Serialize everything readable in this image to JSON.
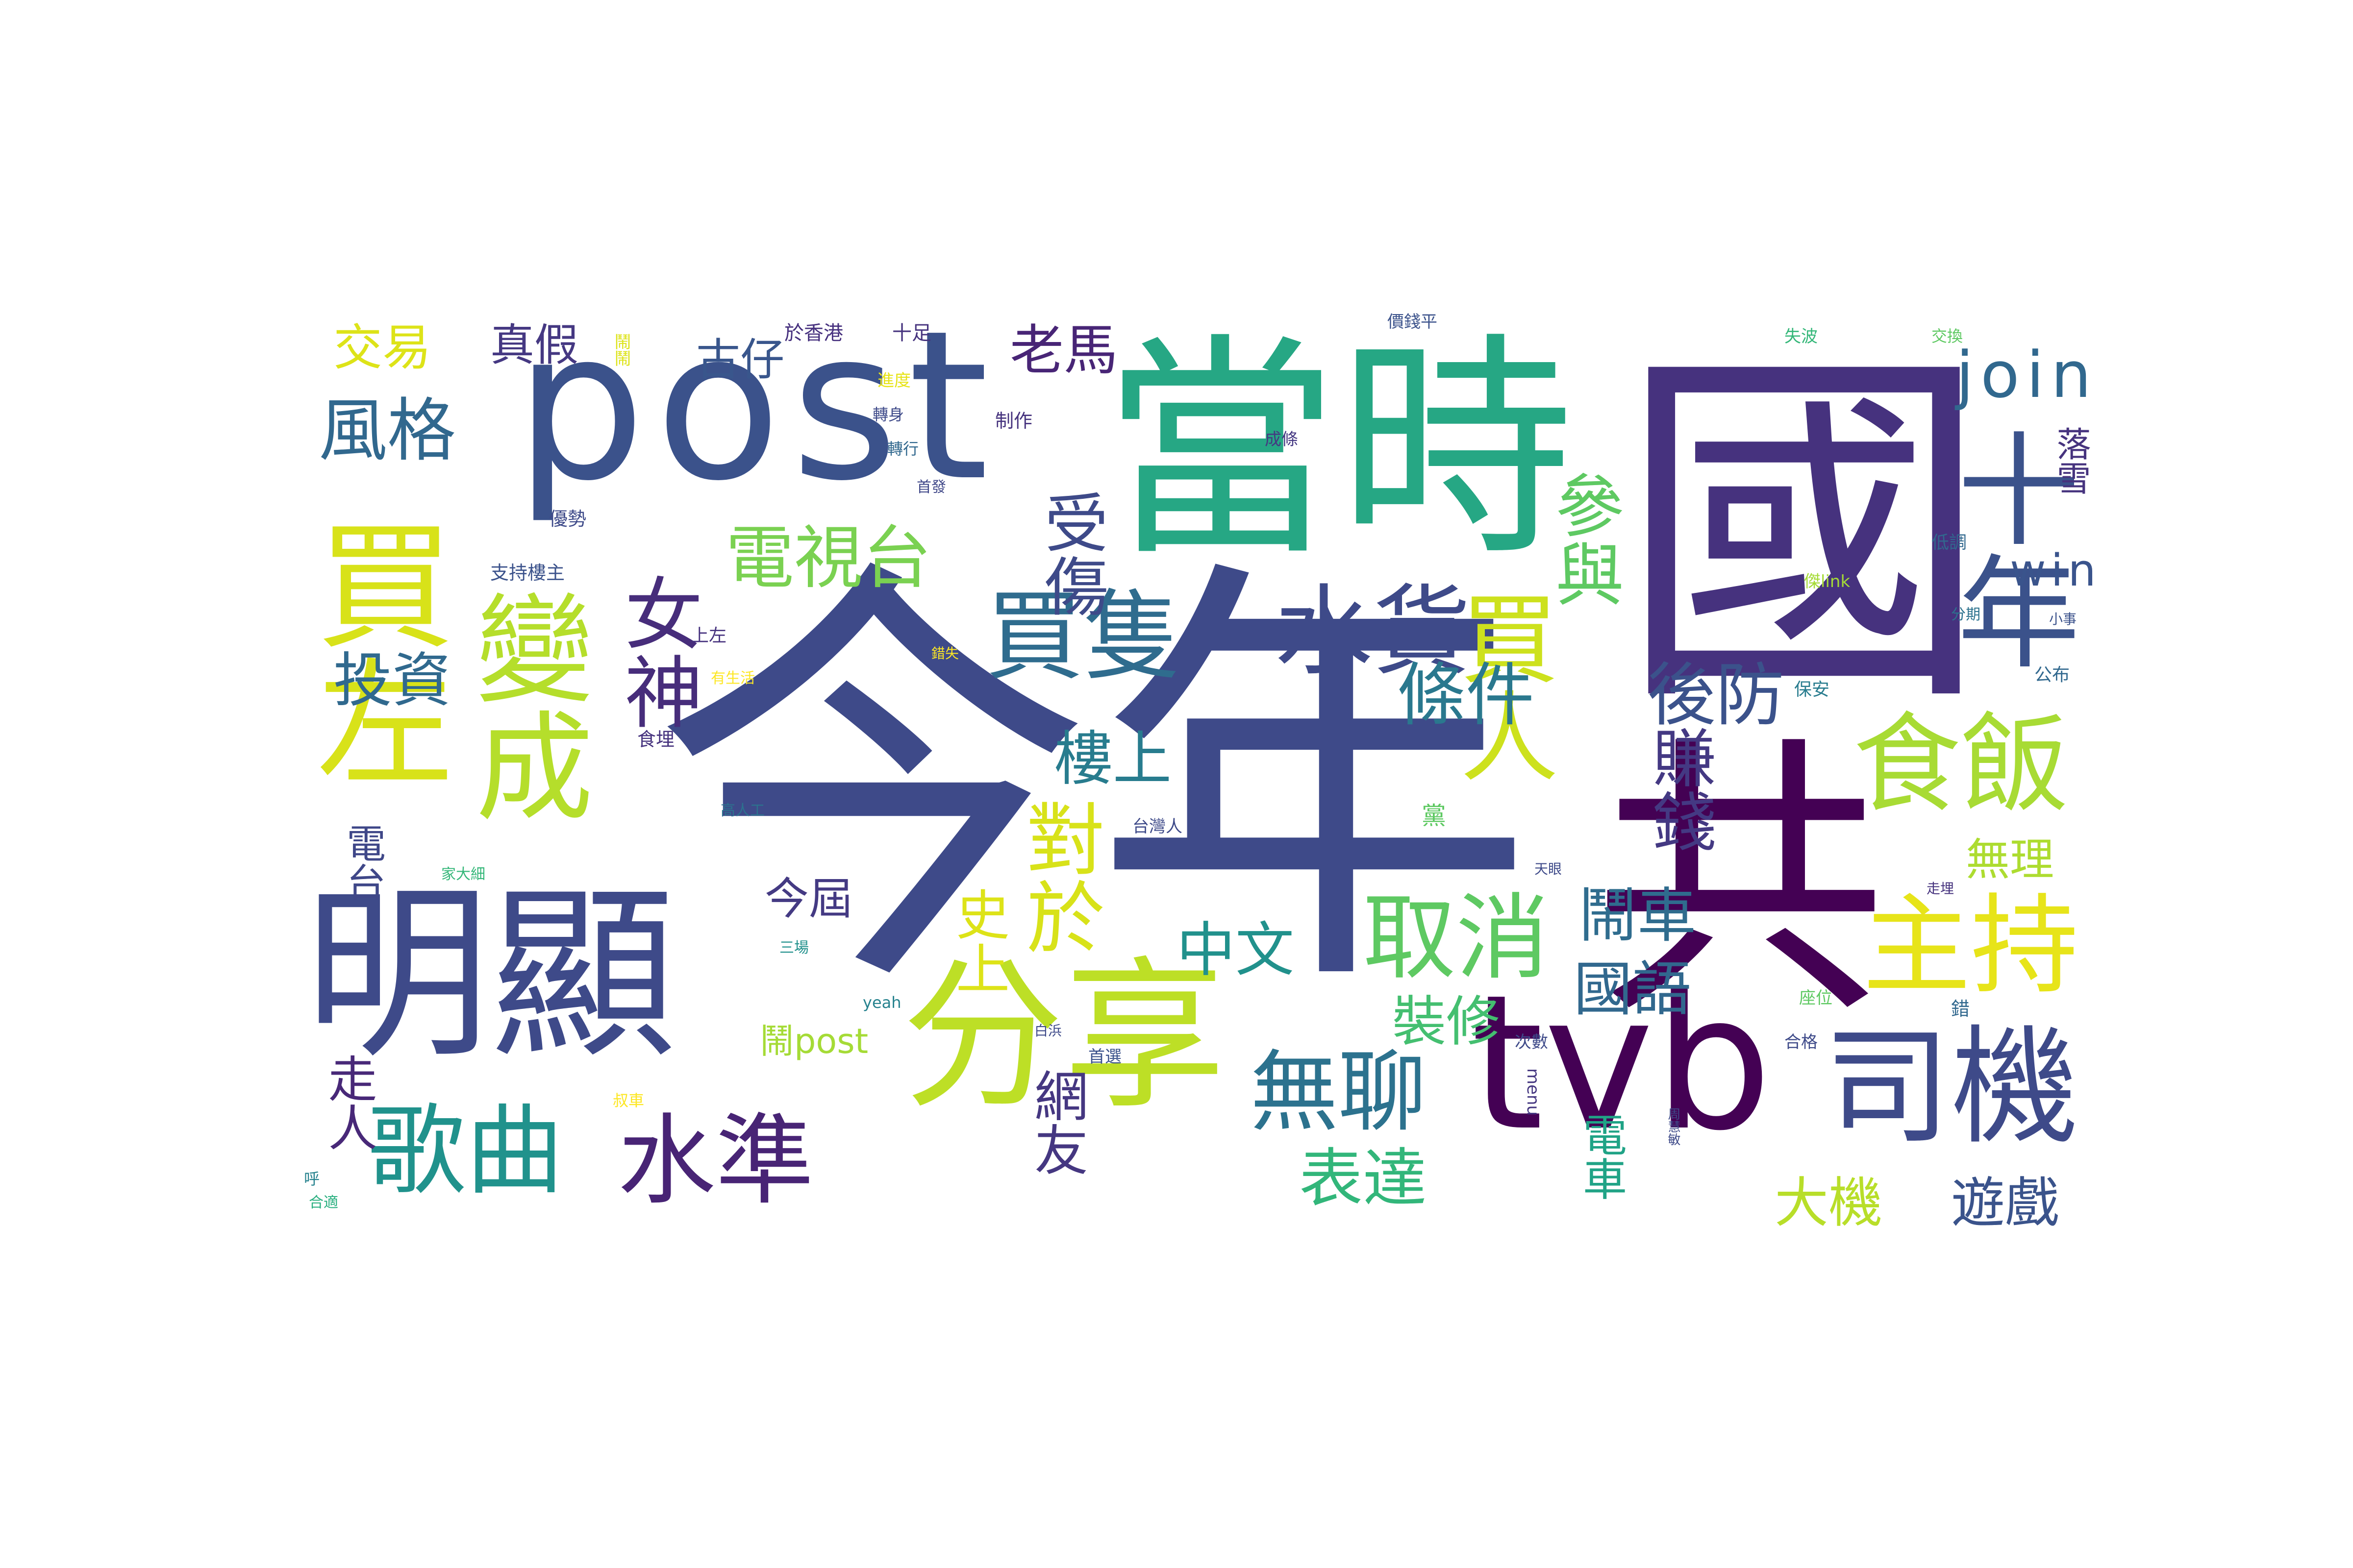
{
  "words": [
    {
      "text": "今年",
      "color": "#3e4a89"
    },
    {
      "text": "國",
      "color": "#46327e"
    },
    {
      "text": "當時",
      "color": "#26a784"
    },
    {
      "text": "post",
      "color": "#3b528b"
    },
    {
      "text": "明顯",
      "color": "#3e4a89"
    },
    {
      "text": "tvb",
      "color": "#440154"
    },
    {
      "text": "分享",
      "color": "#bddf26"
    },
    {
      "text": "十年",
      "color": "#3b528b"
    },
    {
      "text": "共",
      "color": "#440154"
    },
    {
      "text": "司機",
      "color": "#3e4a89"
    },
    {
      "text": "買左",
      "color": "#d8e219"
    },
    {
      "text": "變成",
      "color": "#b5de2b"
    },
    {
      "text": "女神",
      "color": "#472d7b"
    },
    {
      "text": "買隻",
      "color": "#2f6c8e"
    },
    {
      "text": "水貨",
      "color": "#3e4a89"
    },
    {
      "text": "買人",
      "color": "#cde11d"
    },
    {
      "text": "食飯",
      "color": "#a8db34"
    },
    {
      "text": "主持",
      "color": "#e7e419"
    },
    {
      "text": "取消",
      "color": "#5ec962"
    },
    {
      "text": "無聊",
      "color": "#2c728e"
    },
    {
      "text": "歌曲",
      "color": "#20928c"
    },
    {
      "text": "水準",
      "color": "#482475"
    },
    {
      "text": "電視台",
      "color": "#7ad151"
    },
    {
      "text": "參與",
      "color": "#5ec962"
    },
    {
      "text": "受傷",
      "color": "#3e4a89"
    },
    {
      "text": "對於",
      "color": "#d8e219"
    },
    {
      "text": "賺錢",
      "color": "#443983"
    },
    {
      "text": "風格",
      "color": "#31688e"
    },
    {
      "text": "join",
      "color": "#31688e"
    },
    {
      "text": "條件",
      "color": "#2a788e"
    },
    {
      "text": "後防",
      "color": "#3b528b"
    },
    {
      "text": "樓上",
      "color": "#287c8e"
    },
    {
      "text": "投資",
      "color": "#30698e"
    },
    {
      "text": "中文",
      "color": "#21918c"
    },
    {
      "text": "鬧車",
      "color": "#2f6c8e"
    },
    {
      "text": "國語",
      "color": "#31688e"
    },
    {
      "text": "裝修",
      "color": "#44bf70"
    },
    {
      "text": "表達",
      "color": "#32b67a"
    },
    {
      "text": "網友",
      "color": "#453781"
    },
    {
      "text": "大機",
      "color": "#b8de29"
    },
    {
      "text": "遊戲",
      "color": "#3a538b"
    },
    {
      "text": "電車",
      "color": "#20a386"
    },
    {
      "text": "走人",
      "color": "#482878"
    },
    {
      "text": "史上",
      "color": "#dde318"
    },
    {
      "text": "今屆",
      "color": "#443a83"
    },
    {
      "text": "交易",
      "color": "#dde318"
    },
    {
      "text": "真假",
      "color": "#453882"
    },
    {
      "text": "古仔",
      "color": "#39568c"
    },
    {
      "text": "老馬",
      "color": "#482576"
    },
    {
      "text": "電台",
      "color": "#3f4788"
    },
    {
      "text": "無理",
      "color": "#addc30"
    },
    {
      "text": "win",
      "color": "#3a548c"
    },
    {
      "text": "落雪",
      "color": "#46337e"
    },
    {
      "text": "鬧post",
      "color": "#a5db36"
    },
    {
      "text": "於香港",
      "color": "#46307e"
    },
    {
      "text": "十足",
      "color": "#46337e"
    },
    {
      "text": "進度",
      "color": "#e7e419"
    },
    {
      "text": "轉身",
      "color": "#3e4a89"
    },
    {
      "text": "轉行",
      "color": "#31688e"
    },
    {
      "text": "制作",
      "color": "#46337e"
    },
    {
      "text": "成條",
      "color": "#453882"
    },
    {
      "text": "價錢平",
      "color": "#3b528b"
    },
    {
      "text": "失波",
      "color": "#35b779"
    },
    {
      "text": "交換",
      "color": "#5ec962"
    },
    {
      "text": "鬧鬧",
      "color": "#dde318"
    },
    {
      "text": "首發",
      "color": "#3f4788"
    },
    {
      "text": "優勢",
      "color": "#3e4a89"
    },
    {
      "text": "支持樓主",
      "color": "#3b528b"
    },
    {
      "text": "上左",
      "color": "#46327e"
    },
    {
      "text": "錯失",
      "color": "#fde725"
    },
    {
      "text": "有生活",
      "color": "#fde725"
    },
    {
      "text": "食埋",
      "color": "#46337e"
    },
    {
      "text": "高人工",
      "color": "#2c728e"
    },
    {
      "text": "三場",
      "color": "#21918c"
    },
    {
      "text": "yeah",
      "color": "#26828e"
    },
    {
      "text": "家大細",
      "color": "#35b779"
    },
    {
      "text": "台灣人",
      "color": "#3e4a89"
    },
    {
      "text": "白浜",
      "color": "#3e4a89"
    },
    {
      "text": "首選",
      "color": "#3b528b"
    },
    {
      "text": "叔車",
      "color": "#fde725"
    },
    {
      "text": "呼",
      "color": "#26828e"
    },
    {
      "text": "合適",
      "color": "#29af7f"
    },
    {
      "text": "menu",
      "color": "#453781"
    },
    {
      "text": "周慧敏",
      "color": "#3e4a89"
    },
    {
      "text": "次數",
      "color": "#3e4a89"
    },
    {
      "text": "合格",
      "color": "#3e4a89"
    },
    {
      "text": "座位",
      "color": "#5ec962"
    },
    {
      "text": "錯",
      "color": "#31688e"
    },
    {
      "text": "走埋",
      "color": "#46337e"
    },
    {
      "text": "天眼",
      "color": "#3e4a89"
    },
    {
      "text": "保安",
      "color": "#287c8e"
    },
    {
      "text": "低調",
      "color": "#31688e"
    },
    {
      "text": "公布",
      "color": "#31688e"
    },
    {
      "text": "分期",
      "color": "#2c728e"
    },
    {
      "text": "小事",
      "color": "#3b528b"
    },
    {
      "text": "傑link",
      "color": "#a5db36"
    },
    {
      "text": "黨",
      "color": "#5ec962"
    }
  ]
}
